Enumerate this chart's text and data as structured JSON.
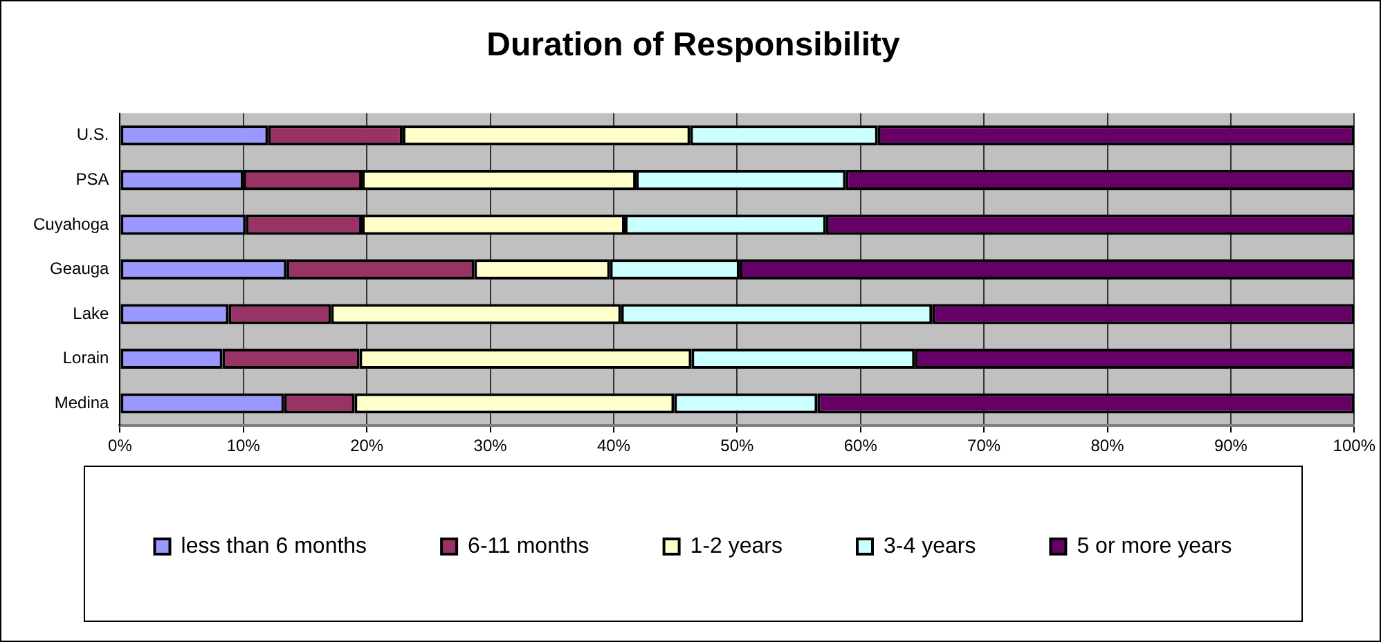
{
  "chart_data": {
    "type": "bar",
    "orientation": "horizontal",
    "stacked": true,
    "title": "Duration of Responsibility",
    "categories": [
      "U.S.",
      "PSA",
      "Cuyahoga",
      "Geauga",
      "Lake",
      "Lorain",
      "Medina"
    ],
    "series": [
      {
        "name": "less than 6 months",
        "color": "#9999ff",
        "values": [
          12,
          10,
          10.2,
          13.5,
          8.8,
          8.3,
          13.3
        ]
      },
      {
        "name": "6-11 months",
        "color": "#993366",
        "values": [
          10.9,
          9.6,
          9.4,
          15.2,
          8.3,
          11.1,
          5.7
        ]
      },
      {
        "name": "1-2 years",
        "color": "#ffffcc",
        "values": [
          23.3,
          22.2,
          21.3,
          11,
          23.5,
          26.9,
          25.9
        ]
      },
      {
        "name": "3-4 years",
        "color": "#ccffff",
        "values": [
          15.2,
          17,
          16.3,
          10.5,
          25.2,
          18.1,
          11.6
        ]
      },
      {
        "name": "5 or more years",
        "color": "#660066",
        "values": [
          38.6,
          41.2,
          42.8,
          49.8,
          34.2,
          35.6,
          43.5
        ]
      }
    ],
    "xlim": [
      0,
      100
    ],
    "xticks": [
      {
        "value": 0,
        "label": "0%"
      },
      {
        "value": 10,
        "label": "10%"
      },
      {
        "value": 20,
        "label": "20%"
      },
      {
        "value": 30,
        "label": "30%"
      },
      {
        "value": 40,
        "label": "40%"
      },
      {
        "value": 50,
        "label": "50%"
      },
      {
        "value": 60,
        "label": "60%"
      },
      {
        "value": 70,
        "label": "70%"
      },
      {
        "value": 80,
        "label": "80%"
      },
      {
        "value": 90,
        "label": "90%"
      },
      {
        "value": 100,
        "label": "100%"
      }
    ],
    "grid": "x",
    "legend": "bottom"
  }
}
